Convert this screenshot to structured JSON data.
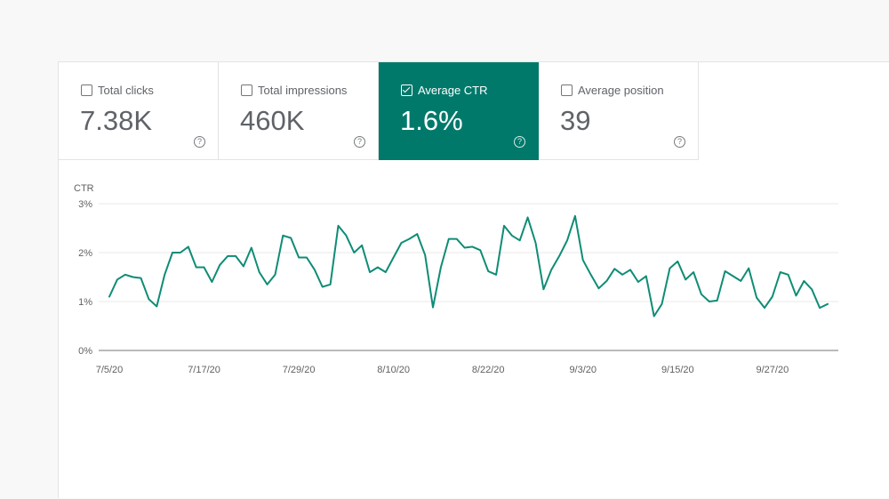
{
  "metrics": [
    {
      "label": "Total clicks",
      "value": "7.38K",
      "selected": false
    },
    {
      "label": "Total impressions",
      "value": "460K",
      "selected": false
    },
    {
      "label": "Average CTR",
      "value": "1.6%",
      "selected": true
    },
    {
      "label": "Average position",
      "value": "39",
      "selected": false
    }
  ],
  "help_glyph": "?",
  "colors": {
    "accent": "#00796b",
    "line": "#0f8c76"
  },
  "chart_data": {
    "type": "line",
    "ylabel": "CTR",
    "y_ticks": [
      "0%",
      "1%",
      "2%",
      "3%"
    ],
    "ylim": [
      0,
      3
    ],
    "x_ticks": [
      "7/5/20",
      "7/17/20",
      "7/29/20",
      "8/10/20",
      "8/22/20",
      "9/3/20",
      "9/15/20",
      "9/27/20"
    ],
    "x_start": "7/5/20",
    "grid": true,
    "series": [
      {
        "values": [
          1.1,
          1.45,
          1.55,
          1.5,
          1.48,
          1.05,
          0.9,
          1.55,
          2.0,
          2.0,
          2.12,
          1.7,
          1.7,
          1.4,
          1.75,
          1.93,
          1.93,
          1.72,
          2.1,
          1.6,
          1.35,
          1.55,
          2.35,
          2.3,
          1.9,
          1.9,
          1.65,
          1.3,
          1.35,
          2.55,
          2.35,
          2.0,
          2.15,
          1.6,
          1.7,
          1.6,
          1.9,
          2.2,
          2.28,
          2.38,
          1.95,
          0.88,
          1.7,
          2.28,
          2.28,
          2.1,
          2.12,
          2.05,
          1.62,
          1.55,
          2.55,
          2.35,
          2.25,
          2.72,
          2.2,
          1.25,
          1.65,
          1.93,
          2.25,
          2.75,
          1.85,
          1.55,
          1.27,
          1.42,
          1.67,
          1.55,
          1.65,
          1.4,
          1.52,
          0.7,
          0.95,
          1.68,
          1.82,
          1.45,
          1.6,
          1.15,
          1.0,
          1.02,
          1.62,
          1.52,
          1.42,
          1.68,
          1.08,
          0.87,
          1.1,
          1.6,
          1.55,
          1.12,
          1.42,
          1.25,
          0.87,
          0.95
        ]
      }
    ]
  }
}
